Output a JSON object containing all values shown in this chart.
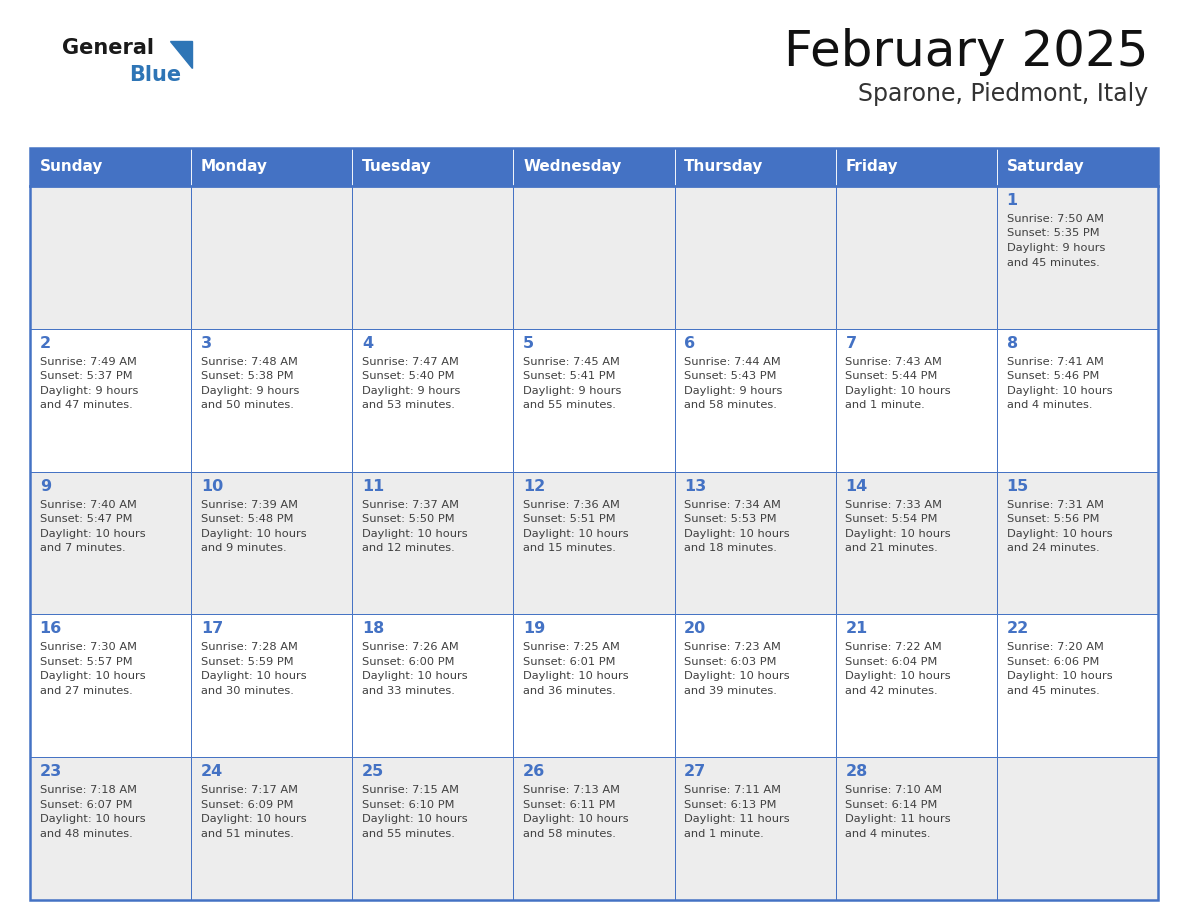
{
  "title": "February 2025",
  "subtitle": "Sparone, Piedmont, Italy",
  "header_color": "#4472C4",
  "header_text_color": "#FFFFFF",
  "day_names": [
    "Sunday",
    "Monday",
    "Tuesday",
    "Wednesday",
    "Thursday",
    "Friday",
    "Saturday"
  ],
  "background_color": "#FFFFFF",
  "cell_bg_even": "#EDEDED",
  "cell_bg_odd": "#FFFFFF",
  "border_color": "#4472C4",
  "text_color": "#404040",
  "logo_general_color": "#1a1a1a",
  "logo_blue_color": "#2E75B6",
  "weeks": [
    {
      "days": [
        {
          "day": null,
          "info": null
        },
        {
          "day": null,
          "info": null
        },
        {
          "day": null,
          "info": null
        },
        {
          "day": null,
          "info": null
        },
        {
          "day": null,
          "info": null
        },
        {
          "day": null,
          "info": null
        },
        {
          "day": 1,
          "info": "Sunrise: 7:50 AM\nSunset: 5:35 PM\nDaylight: 9 hours\nand 45 minutes."
        }
      ]
    },
    {
      "days": [
        {
          "day": 2,
          "info": "Sunrise: 7:49 AM\nSunset: 5:37 PM\nDaylight: 9 hours\nand 47 minutes."
        },
        {
          "day": 3,
          "info": "Sunrise: 7:48 AM\nSunset: 5:38 PM\nDaylight: 9 hours\nand 50 minutes."
        },
        {
          "day": 4,
          "info": "Sunrise: 7:47 AM\nSunset: 5:40 PM\nDaylight: 9 hours\nand 53 minutes."
        },
        {
          "day": 5,
          "info": "Sunrise: 7:45 AM\nSunset: 5:41 PM\nDaylight: 9 hours\nand 55 minutes."
        },
        {
          "day": 6,
          "info": "Sunrise: 7:44 AM\nSunset: 5:43 PM\nDaylight: 9 hours\nand 58 minutes."
        },
        {
          "day": 7,
          "info": "Sunrise: 7:43 AM\nSunset: 5:44 PM\nDaylight: 10 hours\nand 1 minute."
        },
        {
          "day": 8,
          "info": "Sunrise: 7:41 AM\nSunset: 5:46 PM\nDaylight: 10 hours\nand 4 minutes."
        }
      ]
    },
    {
      "days": [
        {
          "day": 9,
          "info": "Sunrise: 7:40 AM\nSunset: 5:47 PM\nDaylight: 10 hours\nand 7 minutes."
        },
        {
          "day": 10,
          "info": "Sunrise: 7:39 AM\nSunset: 5:48 PM\nDaylight: 10 hours\nand 9 minutes."
        },
        {
          "day": 11,
          "info": "Sunrise: 7:37 AM\nSunset: 5:50 PM\nDaylight: 10 hours\nand 12 minutes."
        },
        {
          "day": 12,
          "info": "Sunrise: 7:36 AM\nSunset: 5:51 PM\nDaylight: 10 hours\nand 15 minutes."
        },
        {
          "day": 13,
          "info": "Sunrise: 7:34 AM\nSunset: 5:53 PM\nDaylight: 10 hours\nand 18 minutes."
        },
        {
          "day": 14,
          "info": "Sunrise: 7:33 AM\nSunset: 5:54 PM\nDaylight: 10 hours\nand 21 minutes."
        },
        {
          "day": 15,
          "info": "Sunrise: 7:31 AM\nSunset: 5:56 PM\nDaylight: 10 hours\nand 24 minutes."
        }
      ]
    },
    {
      "days": [
        {
          "day": 16,
          "info": "Sunrise: 7:30 AM\nSunset: 5:57 PM\nDaylight: 10 hours\nand 27 minutes."
        },
        {
          "day": 17,
          "info": "Sunrise: 7:28 AM\nSunset: 5:59 PM\nDaylight: 10 hours\nand 30 minutes."
        },
        {
          "day": 18,
          "info": "Sunrise: 7:26 AM\nSunset: 6:00 PM\nDaylight: 10 hours\nand 33 minutes."
        },
        {
          "day": 19,
          "info": "Sunrise: 7:25 AM\nSunset: 6:01 PM\nDaylight: 10 hours\nand 36 minutes."
        },
        {
          "day": 20,
          "info": "Sunrise: 7:23 AM\nSunset: 6:03 PM\nDaylight: 10 hours\nand 39 minutes."
        },
        {
          "day": 21,
          "info": "Sunrise: 7:22 AM\nSunset: 6:04 PM\nDaylight: 10 hours\nand 42 minutes."
        },
        {
          "day": 22,
          "info": "Sunrise: 7:20 AM\nSunset: 6:06 PM\nDaylight: 10 hours\nand 45 minutes."
        }
      ]
    },
    {
      "days": [
        {
          "day": 23,
          "info": "Sunrise: 7:18 AM\nSunset: 6:07 PM\nDaylight: 10 hours\nand 48 minutes."
        },
        {
          "day": 24,
          "info": "Sunrise: 7:17 AM\nSunset: 6:09 PM\nDaylight: 10 hours\nand 51 minutes."
        },
        {
          "day": 25,
          "info": "Sunrise: 7:15 AM\nSunset: 6:10 PM\nDaylight: 10 hours\nand 55 minutes."
        },
        {
          "day": 26,
          "info": "Sunrise: 7:13 AM\nSunset: 6:11 PM\nDaylight: 10 hours\nand 58 minutes."
        },
        {
          "day": 27,
          "info": "Sunrise: 7:11 AM\nSunset: 6:13 PM\nDaylight: 11 hours\nand 1 minute."
        },
        {
          "day": 28,
          "info": "Sunrise: 7:10 AM\nSunset: 6:14 PM\nDaylight: 11 hours\nand 4 minutes."
        },
        {
          "day": null,
          "info": null
        }
      ]
    }
  ]
}
